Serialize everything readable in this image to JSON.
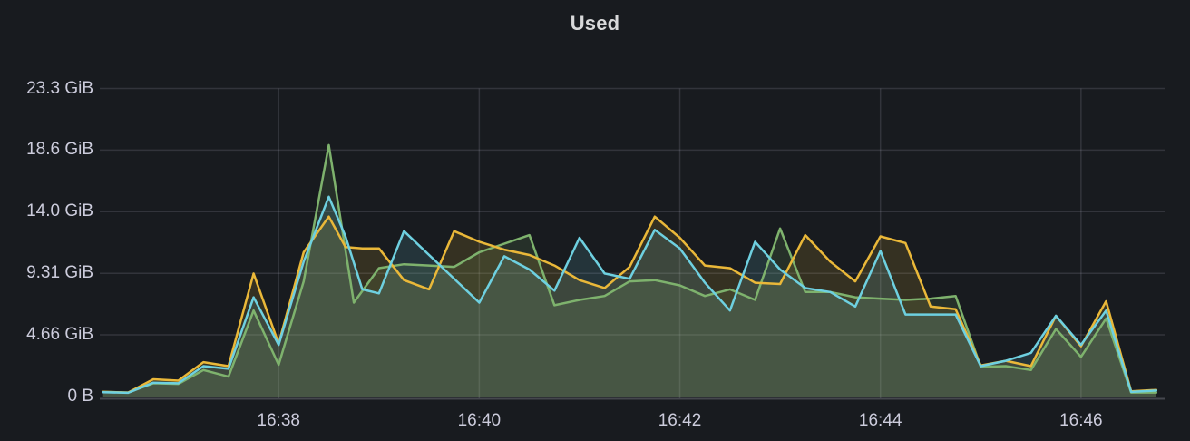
{
  "panel": {
    "title": "Used"
  },
  "colors": {
    "background": "#181b1f",
    "label_text": "#ccccdc",
    "title_text": "#d8d9da",
    "grid": "rgba(204,204,220,0.15)",
    "axis_line": "rgba(204,204,220,0.25)"
  },
  "chart_data": {
    "type": "line",
    "title": "Used",
    "legend": "none",
    "grid": true,
    "fill_opacity": 0.14,
    "y_axis": {
      "unit": "GiB",
      "range": [
        0,
        24.6
      ],
      "ticks": [
        {
          "label": "0 B",
          "value": 0
        },
        {
          "label": "4.66 GiB",
          "value": 4.66
        },
        {
          "label": "9.31 GiB",
          "value": 9.31
        },
        {
          "label": "14.0 GiB",
          "value": 13.97
        },
        {
          "label": "18.6 GiB",
          "value": 18.63
        },
        {
          "label": "23.3 GiB",
          "value": 23.28
        }
      ]
    },
    "x_axis": {
      "t_unit": "seconds after 16:36:00",
      "range_t": [
        13,
        650
      ],
      "ticks": [
        {
          "label": "16:38",
          "t": 120
        },
        {
          "label": "16:40",
          "t": 240
        },
        {
          "label": "16:42",
          "t": 360
        },
        {
          "label": "16:44",
          "t": 480
        },
        {
          "label": "16:46",
          "t": 600
        }
      ]
    },
    "series": [
      {
        "name": "green",
        "color": "#7eb26d",
        "points": [
          [
            15,
            0.35
          ],
          [
            30,
            0.3
          ],
          [
            45,
            1.0
          ],
          [
            60,
            0.95
          ],
          [
            75,
            2.0
          ],
          [
            90,
            1.5
          ],
          [
            105,
            6.5
          ],
          [
            120,
            2.4
          ],
          [
            135,
            8.7
          ],
          [
            150,
            19.0
          ],
          [
            165,
            7.1
          ],
          [
            180,
            9.7
          ],
          [
            195,
            10.0
          ],
          [
            210,
            9.9
          ],
          [
            225,
            9.8
          ],
          [
            240,
            10.9
          ],
          [
            270,
            12.2
          ],
          [
            285,
            6.9
          ],
          [
            300,
            7.3
          ],
          [
            315,
            7.6
          ],
          [
            330,
            8.7
          ],
          [
            345,
            8.8
          ],
          [
            360,
            8.4
          ],
          [
            375,
            7.6
          ],
          [
            390,
            8.1
          ],
          [
            405,
            7.3
          ],
          [
            420,
            12.7
          ],
          [
            435,
            7.9
          ],
          [
            450,
            7.9
          ],
          [
            465,
            7.5
          ],
          [
            480,
            7.4
          ],
          [
            495,
            7.3
          ],
          [
            510,
            7.4
          ],
          [
            525,
            7.6
          ],
          [
            540,
            2.25
          ],
          [
            555,
            2.3
          ],
          [
            570,
            2.0
          ],
          [
            585,
            5.1
          ],
          [
            600,
            3.0
          ],
          [
            615,
            5.9
          ],
          [
            630,
            0.3
          ],
          [
            645,
            0.3
          ]
        ]
      },
      {
        "name": "yellow",
        "color": "#eab839",
        "points": [
          [
            15,
            0.35
          ],
          [
            30,
            0.3
          ],
          [
            45,
            1.3
          ],
          [
            60,
            1.2
          ],
          [
            75,
            2.6
          ],
          [
            90,
            2.3
          ],
          [
            105,
            9.3
          ],
          [
            120,
            4.0
          ],
          [
            135,
            10.9
          ],
          [
            150,
            13.6
          ],
          [
            160,
            11.3
          ],
          [
            170,
            11.2
          ],
          [
            180,
            11.2
          ],
          [
            195,
            8.8
          ],
          [
            210,
            8.1
          ],
          [
            225,
            12.5
          ],
          [
            240,
            11.7
          ],
          [
            255,
            11.1
          ],
          [
            270,
            10.7
          ],
          [
            285,
            9.9
          ],
          [
            300,
            8.8
          ],
          [
            315,
            8.2
          ],
          [
            330,
            9.8
          ],
          [
            345,
            13.6
          ],
          [
            360,
            12.0
          ],
          [
            375,
            9.9
          ],
          [
            390,
            9.7
          ],
          [
            405,
            8.6
          ],
          [
            420,
            8.5
          ],
          [
            435,
            12.2
          ],
          [
            450,
            10.2
          ],
          [
            465,
            8.7
          ],
          [
            480,
            12.1
          ],
          [
            495,
            11.6
          ],
          [
            510,
            6.8
          ],
          [
            525,
            6.6
          ],
          [
            540,
            2.35
          ],
          [
            555,
            2.7
          ],
          [
            570,
            2.3
          ],
          [
            585,
            6.1
          ],
          [
            600,
            3.8
          ],
          [
            615,
            7.2
          ],
          [
            630,
            0.4
          ],
          [
            645,
            0.5
          ]
        ]
      },
      {
        "name": "blue",
        "color": "#6ed0e0",
        "points": [
          [
            15,
            0.33
          ],
          [
            30,
            0.28
          ],
          [
            45,
            1.05
          ],
          [
            60,
            1.0
          ],
          [
            75,
            2.3
          ],
          [
            90,
            2.1
          ],
          [
            105,
            7.5
          ],
          [
            120,
            3.9
          ],
          [
            135,
            10.2
          ],
          [
            150,
            15.1
          ],
          [
            160,
            12.1
          ],
          [
            170,
            8.1
          ],
          [
            180,
            7.8
          ],
          [
            195,
            12.5
          ],
          [
            240,
            7.1
          ],
          [
            255,
            10.6
          ],
          [
            270,
            9.6
          ],
          [
            285,
            8.0
          ],
          [
            300,
            12.0
          ],
          [
            315,
            9.3
          ],
          [
            330,
            8.9
          ],
          [
            345,
            12.6
          ],
          [
            360,
            11.2
          ],
          [
            375,
            8.6
          ],
          [
            390,
            6.5
          ],
          [
            405,
            11.7
          ],
          [
            420,
            9.6
          ],
          [
            435,
            8.2
          ],
          [
            450,
            7.9
          ],
          [
            465,
            6.8
          ],
          [
            480,
            11.0
          ],
          [
            495,
            6.2
          ],
          [
            510,
            6.2
          ],
          [
            525,
            6.2
          ],
          [
            540,
            2.3
          ],
          [
            555,
            2.7
          ],
          [
            570,
            3.3
          ],
          [
            585,
            6.1
          ],
          [
            600,
            3.9
          ],
          [
            615,
            6.5
          ],
          [
            630,
            0.35
          ],
          [
            645,
            0.45
          ]
        ]
      }
    ]
  }
}
